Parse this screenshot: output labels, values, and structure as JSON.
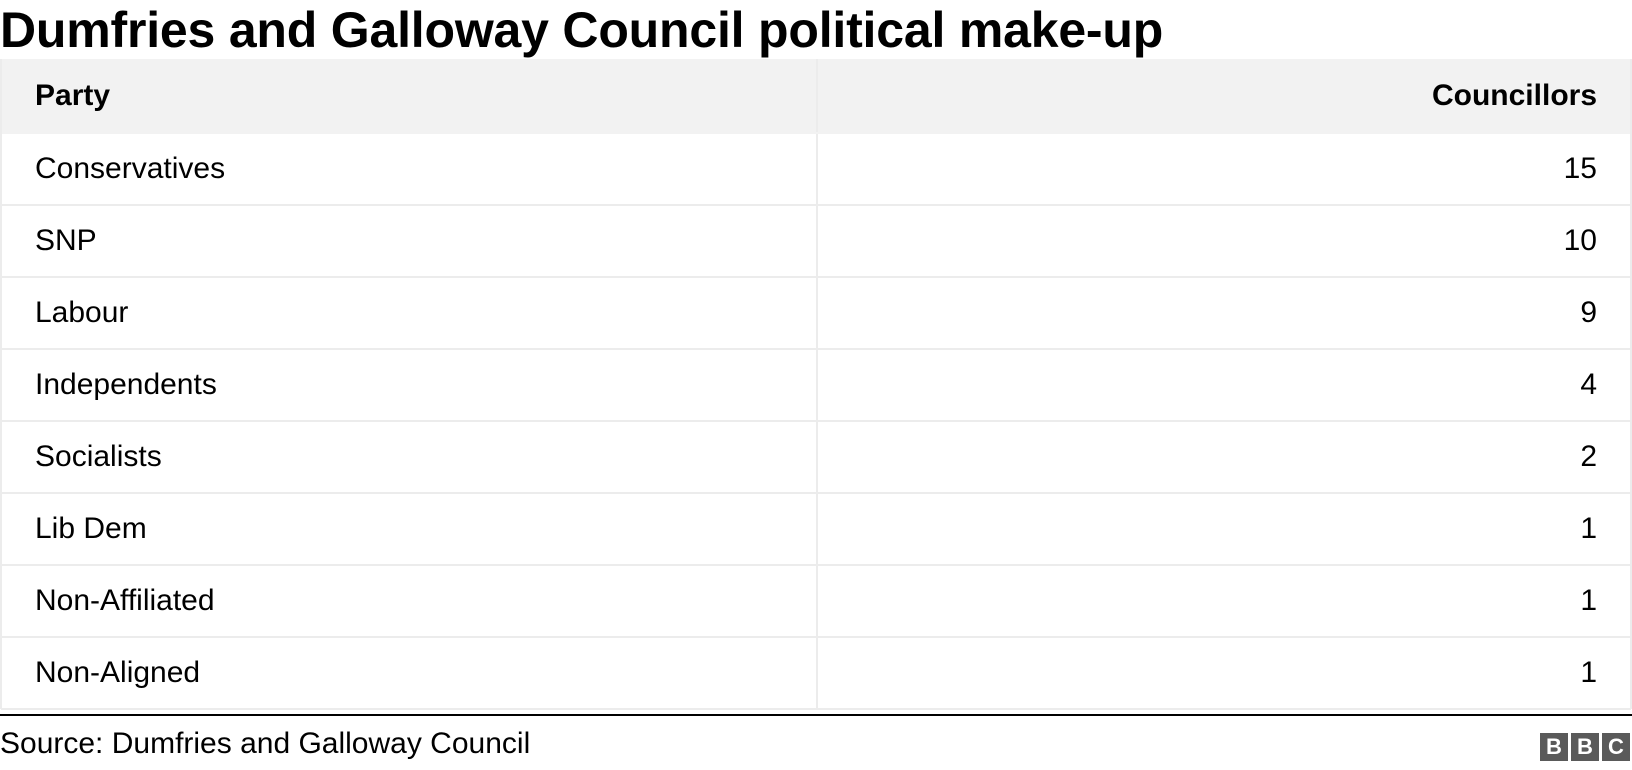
{
  "title": "Dumfries and Galloway Council political make-up",
  "chart_data": {
    "type": "table",
    "columns": [
      "Party",
      "Councillors"
    ],
    "rows": [
      {
        "party": "Conservatives",
        "councillors": "15"
      },
      {
        "party": "SNP",
        "councillors": "10"
      },
      {
        "party": "Labour",
        "councillors": "9"
      },
      {
        "party": "Independents",
        "councillors": "4"
      },
      {
        "party": "Socialists",
        "councillors": "2"
      },
      {
        "party": "Lib Dem",
        "councillors": "1"
      },
      {
        "party": "Non-Affiliated",
        "councillors": "1"
      },
      {
        "party": "Non-Aligned",
        "councillors": "1"
      }
    ]
  },
  "source": "Source: Dumfries and Galloway Council",
  "logo": {
    "letters": [
      "B",
      "B",
      "C"
    ],
    "color": "#5a5a5a"
  },
  "colors": {
    "header_bg": "#f2f2f2",
    "grid": "#ececec",
    "rule": "#000000"
  }
}
